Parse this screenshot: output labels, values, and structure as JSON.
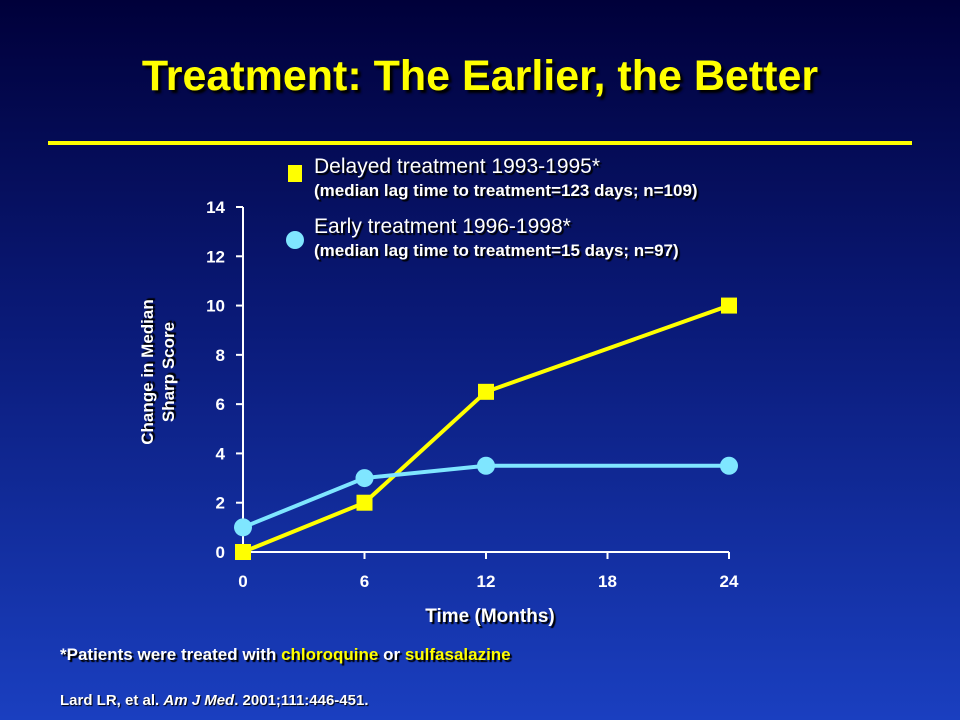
{
  "slide": {
    "title": "Treatment: The Earlier, the Better",
    "footnote_prefix": "*Patients were treated with ",
    "footnote_drug1": "chloroquine",
    "footnote_or": " or ",
    "footnote_drug2": "sulfasalazine",
    "citation_authors": "Lard LR, et al. ",
    "citation_journal": "Am J Med",
    "citation_rest": ". 2001;111:446-451."
  },
  "legend": {
    "delayed_label": "Delayed treatment 1993-1995*",
    "delayed_sub": "(median lag time to treatment=123 days; n=109)",
    "early_label": "Early treatment 1996-1998*",
    "early_sub": "(median lag time to treatment=15 days; n=97)"
  },
  "chart_data": {
    "type": "line",
    "xlabel": "Time (Months)",
    "ylabel_line1": "Change in Median",
    "ylabel_line2": "Sharp Score",
    "xlim": [
      0,
      24
    ],
    "ylim": [
      0,
      14
    ],
    "xticks": [
      0,
      6,
      12,
      18,
      24
    ],
    "yticks": [
      0,
      2,
      4,
      6,
      8,
      10,
      12,
      14
    ],
    "series": [
      {
        "name": "Delayed treatment 1993-1995*",
        "marker": "square",
        "color": "#ffff00",
        "x": [
          0,
          6,
          12,
          24
        ],
        "y": [
          0,
          2,
          6.5,
          10
        ]
      },
      {
        "name": "Early treatment 1996-1998*",
        "marker": "circle",
        "color": "#7fe6ff",
        "x": [
          0,
          6,
          12,
          24
        ],
        "y": [
          1,
          3,
          3.5,
          3.5
        ]
      }
    ]
  }
}
